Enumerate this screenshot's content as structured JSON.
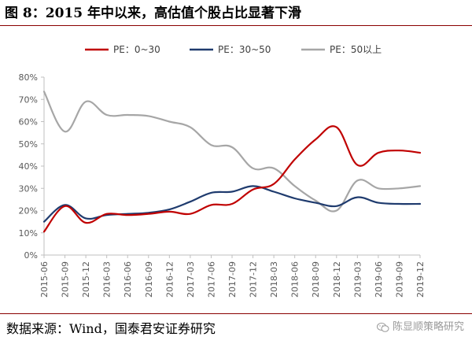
{
  "title": "图 8：2015 年中以来，高估值个股占比显著下滑",
  "source": "数据来源：Wind，国泰君安证券研究",
  "watermark": "陈显顺策略研究",
  "chart_data": {
    "type": "line",
    "title": "",
    "xlabel": "",
    "ylabel": "",
    "ylim": [
      0,
      80
    ],
    "y_ticks": [
      "0%",
      "10%",
      "20%",
      "30%",
      "40%",
      "50%",
      "60%",
      "70%",
      "80%"
    ],
    "x_ticks": [
      "2015-06",
      "2015-09",
      "2015-12",
      "2016-03",
      "2016-06",
      "2016-09",
      "2016-12",
      "2017-03",
      "2017-06",
      "2017-09",
      "2017-12",
      "2018-03",
      "2018-06",
      "2018-09",
      "2018-12",
      "2019-03",
      "2019-06",
      "2019-09",
      "2019-12"
    ],
    "legend_position": "top",
    "grid": false,
    "series": [
      {
        "name": "PE：0~30",
        "color": "#c00000",
        "values": [
          10.5,
          22,
          14.5,
          18.5,
          18,
          18.5,
          19.5,
          18.5,
          22.5,
          23,
          29.5,
          32,
          43,
          52,
          57.5,
          40.5,
          46,
          47,
          46
        ]
      },
      {
        "name": "PE：30~50",
        "color": "#1f3b6e",
        "values": [
          15,
          22.5,
          16.5,
          18,
          18.5,
          19,
          20.5,
          24,
          28,
          28.5,
          31,
          28.5,
          25.5,
          23.5,
          22,
          26,
          23.5,
          23,
          23
        ]
      },
      {
        "name": "PE：50以上",
        "color": "#a6a6a6",
        "values": [
          73.5,
          55.5,
          69,
          63,
          63,
          62.5,
          60,
          57.5,
          49.5,
          48.5,
          39,
          39,
          31,
          24.5,
          20,
          33.5,
          30,
          30,
          31
        ]
      }
    ]
  }
}
